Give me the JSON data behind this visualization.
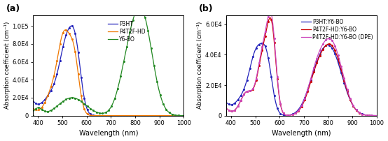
{
  "panel_a": {
    "title": "(a)",
    "xlabel": "Wavelength (nm)",
    "ylabel": "Absorption coefficient (cm⁻¹)",
    "xlim": [
      380,
      1000
    ],
    "ylim": [
      0,
      112000.0
    ],
    "yticks": [
      0,
      20000.0,
      40000.0,
      60000.0,
      80000.0,
      100000.0
    ],
    "ytick_labels": [
      "0",
      "2.0E4",
      "4.0E4",
      "6.0E4",
      "8.0E4",
      "1.0E5"
    ],
    "xticks": [
      400,
      500,
      600,
      700,
      800,
      900,
      1000
    ],
    "legend": [
      "P3HT",
      "P4T2F-HD",
      "Y6-BO"
    ],
    "colors": [
      "#2222bb",
      "#ee7700",
      "#228822"
    ]
  },
  "panel_b": {
    "title": "(b)",
    "xlabel": "Wavelength (nm)",
    "ylabel": "Absorption coefficient (cm⁻¹)",
    "xlim": [
      380,
      1000
    ],
    "ylim": [
      0,
      66000.0
    ],
    "yticks": [
      0,
      20000.0,
      40000.0,
      60000.0
    ],
    "ytick_labels": [
      "0",
      "2.0E4",
      "4.0E4",
      "6.0E4"
    ],
    "xticks": [
      400,
      500,
      600,
      700,
      800,
      900,
      1000
    ],
    "legend": [
      "P3HT:Y6-BO",
      "P4T2F-HD:Y6-BO",
      "P4T2F-HD:Y6-BO (DPE)"
    ],
    "colors": [
      "#2222bb",
      "#cc0000",
      "#cc44bb"
    ]
  }
}
